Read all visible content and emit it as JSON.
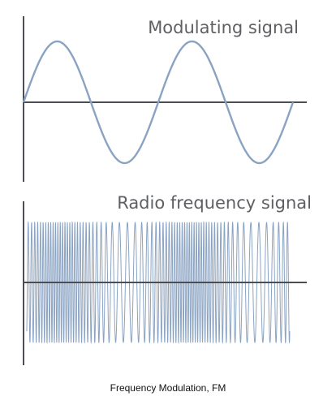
{
  "panels": [
    {
      "title": "Modulating signal",
      "wave": {
        "type": "sine",
        "cycles": 2,
        "start_phase": "zero-crossing-rising"
      }
    },
    {
      "title": "Radio frequency signal",
      "wave": {
        "type": "frequency-modulated carrier",
        "carrier_cycles": 72,
        "deviation": 0.55,
        "modulating_cycles": 2
      }
    }
  ],
  "caption": "Frequency Modulation, FM",
  "colors": {
    "wave": "#8aa3c3",
    "axis": "#4a4d52",
    "title": "#5d5f63",
    "caption": "#111111"
  }
}
